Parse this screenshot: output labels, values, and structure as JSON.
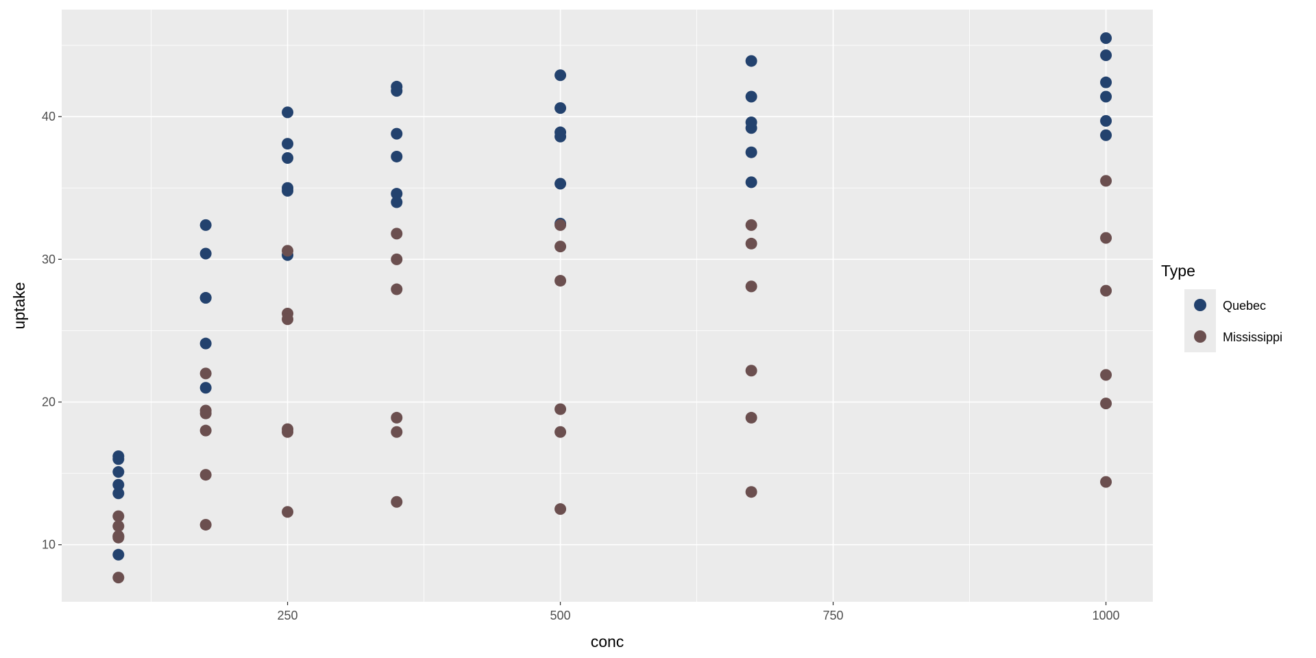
{
  "chart_data": {
    "type": "scatter",
    "xlabel": "conc",
    "ylabel": "uptake",
    "xlim": [
      43,
      1043
    ],
    "ylim": [
      6,
      47.5
    ],
    "xticks": [
      250,
      500,
      750,
      1000
    ],
    "yticks": [
      10,
      20,
      30,
      40
    ],
    "grid": true,
    "legend": {
      "title": "Type",
      "position": "right"
    },
    "series": [
      {
        "name": "Quebec",
        "color": "#23426e",
        "points": [
          [
            95,
            16.0
          ],
          [
            95,
            13.6
          ],
          [
            95,
            16.2
          ],
          [
            95,
            14.2
          ],
          [
            95,
            9.3
          ],
          [
            95,
            15.1
          ],
          [
            175,
            30.4
          ],
          [
            175,
            27.3
          ],
          [
            175,
            32.4
          ],
          [
            175,
            24.1
          ],
          [
            175,
            27.3
          ],
          [
            175,
            21.0
          ],
          [
            250,
            34.8
          ],
          [
            250,
            37.1
          ],
          [
            250,
            40.3
          ],
          [
            250,
            30.3
          ],
          [
            250,
            35.0
          ],
          [
            250,
            38.1
          ],
          [
            350,
            37.2
          ],
          [
            350,
            41.8
          ],
          [
            350,
            42.1
          ],
          [
            350,
            34.6
          ],
          [
            350,
            38.8
          ],
          [
            350,
            34.0
          ],
          [
            500,
            35.3
          ],
          [
            500,
            40.6
          ],
          [
            500,
            42.9
          ],
          [
            500,
            32.5
          ],
          [
            500,
            38.9
          ],
          [
            500,
            38.6
          ],
          [
            675,
            39.2
          ],
          [
            675,
            41.4
          ],
          [
            675,
            43.9
          ],
          [
            675,
            35.4
          ],
          [
            675,
            37.5
          ],
          [
            675,
            39.6
          ],
          [
            1000,
            39.7
          ],
          [
            1000,
            44.3
          ],
          [
            1000,
            45.5
          ],
          [
            1000,
            38.7
          ],
          [
            1000,
            42.4
          ],
          [
            1000,
            41.4
          ]
        ]
      },
      {
        "name": "Mississippi",
        "color": "#6b4f4f",
        "points": [
          [
            95,
            10.6
          ],
          [
            95,
            12.0
          ],
          [
            95,
            11.3
          ],
          [
            95,
            10.5
          ],
          [
            95,
            7.7
          ],
          [
            95,
            10.6
          ],
          [
            175,
            19.2
          ],
          [
            175,
            22.0
          ],
          [
            175,
            19.4
          ],
          [
            175,
            14.9
          ],
          [
            175,
            11.4
          ],
          [
            175,
            18.0
          ],
          [
            250,
            26.2
          ],
          [
            250,
            30.6
          ],
          [
            250,
            25.8
          ],
          [
            250,
            18.1
          ],
          [
            250,
            12.3
          ],
          [
            250,
            17.9
          ],
          [
            350,
            30.0
          ],
          [
            350,
            31.8
          ],
          [
            350,
            27.9
          ],
          [
            350,
            18.9
          ],
          [
            350,
            13.0
          ],
          [
            350,
            17.9
          ],
          [
            500,
            30.9
          ],
          [
            500,
            32.4
          ],
          [
            500,
            28.5
          ],
          [
            500,
            19.5
          ],
          [
            500,
            12.5
          ],
          [
            500,
            17.9
          ],
          [
            675,
            32.4
          ],
          [
            675,
            31.1
          ],
          [
            675,
            28.1
          ],
          [
            675,
            22.2
          ],
          [
            675,
            13.7
          ],
          [
            675,
            18.9
          ],
          [
            1000,
            35.5
          ],
          [
            1000,
            31.5
          ],
          [
            1000,
            27.8
          ],
          [
            1000,
            21.9
          ],
          [
            1000,
            14.4
          ],
          [
            1000,
            19.9
          ]
        ]
      }
    ]
  }
}
